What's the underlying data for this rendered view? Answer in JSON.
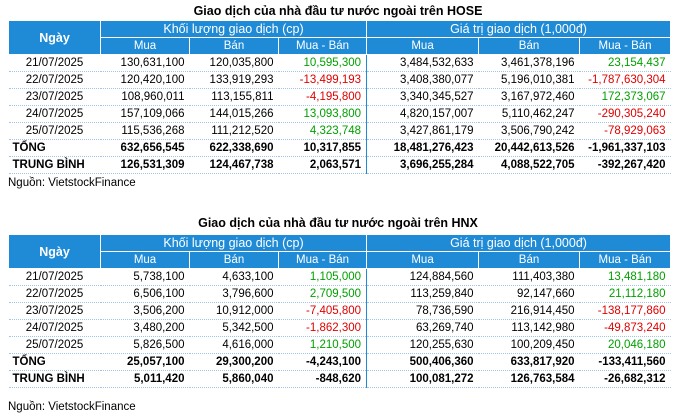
{
  "sections": [
    {
      "title": "Giao dịch của nhà đầu tư nước ngoài trên HOSE",
      "headers": {
        "date": "Ngày",
        "volume_group": "Khối lượng giao dịch (cp)",
        "value_group": "Giá trị giao dịch (1,000đ)",
        "buy": "Mua",
        "sell": "Bán",
        "net": "Mua - Bán"
      },
      "rows": [
        {
          "date": "21/07/2025",
          "vol_buy": "130,631,100",
          "vol_sell": "120,035,800",
          "vol_net": "10,595,300",
          "vol_net_sign": "pos",
          "val_buy": "3,484,532,633",
          "val_sell": "3,461,378,196",
          "val_net": "23,154,437",
          "val_net_sign": "pos"
        },
        {
          "date": "22/07/2025",
          "vol_buy": "120,420,100",
          "vol_sell": "133,919,293",
          "vol_net": "-13,499,193",
          "vol_net_sign": "neg",
          "val_buy": "3,408,380,077",
          "val_sell": "5,196,010,381",
          "val_net": "-1,787,630,304",
          "val_net_sign": "neg"
        },
        {
          "date": "23/07/2025",
          "vol_buy": "108,960,011",
          "vol_sell": "113,155,811",
          "vol_net": "-4,195,800",
          "vol_net_sign": "neg",
          "val_buy": "3,340,345,527",
          "val_sell": "3,167,972,460",
          "val_net": "172,373,067",
          "val_net_sign": "pos"
        },
        {
          "date": "24/07/2025",
          "vol_buy": "157,109,066",
          "vol_sell": "144,015,266",
          "vol_net": "13,093,800",
          "vol_net_sign": "pos",
          "val_buy": "4,820,157,007",
          "val_sell": "5,110,462,247",
          "val_net": "-290,305,240",
          "val_net_sign": "neg"
        },
        {
          "date": "25/07/2025",
          "vol_buy": "115,536,268",
          "vol_sell": "111,212,520",
          "vol_net": "4,323,748",
          "vol_net_sign": "pos",
          "val_buy": "3,427,861,179",
          "val_sell": "3,506,790,242",
          "val_net": "-78,929,063",
          "val_net_sign": "neg"
        }
      ],
      "total": {
        "label": "TỔNG",
        "vol_buy": "632,656,545",
        "vol_sell": "622,338,690",
        "vol_net": "10,317,855",
        "val_buy": "18,481,276,423",
        "val_sell": "20,442,613,526",
        "val_net": "-1,961,337,103"
      },
      "average": {
        "label": "TRUNG BÌNH",
        "vol_buy": "126,531,309",
        "vol_sell": "124,467,738",
        "vol_net": "2,063,571",
        "val_buy": "3,696,255,284",
        "val_sell": "4,088,522,705",
        "val_net": "-392,267,420"
      },
      "source": "Nguồn: VietstockFinance"
    },
    {
      "title": "Giao dịch của nhà đầu tư nước ngoài trên HNX",
      "headers": {
        "date": "Ngày",
        "volume_group": "Khối lượng giao dịch (cp)",
        "value_group": "Giá trị giao dịch (1,000đ)",
        "buy": "Mua",
        "sell": "Bán",
        "net": "Mua - Bán"
      },
      "rows": [
        {
          "date": "21/07/2025",
          "vol_buy": "5,738,100",
          "vol_sell": "4,633,100",
          "vol_net": "1,105,000",
          "vol_net_sign": "pos",
          "val_buy": "124,884,560",
          "val_sell": "111,403,380",
          "val_net": "13,481,180",
          "val_net_sign": "pos"
        },
        {
          "date": "22/07/2025",
          "vol_buy": "6,506,100",
          "vol_sell": "3,796,600",
          "vol_net": "2,709,500",
          "vol_net_sign": "pos",
          "val_buy": "113,259,840",
          "val_sell": "92,147,660",
          "val_net": "21,112,180",
          "val_net_sign": "pos"
        },
        {
          "date": "23/07/2025",
          "vol_buy": "3,506,200",
          "vol_sell": "10,912,000",
          "vol_net": "-7,405,800",
          "vol_net_sign": "neg",
          "val_buy": "78,736,590",
          "val_sell": "216,914,450",
          "val_net": "-138,177,860",
          "val_net_sign": "neg"
        },
        {
          "date": "24/07/2025",
          "vol_buy": "3,480,200",
          "vol_sell": "5,342,500",
          "vol_net": "-1,862,300",
          "vol_net_sign": "neg",
          "val_buy": "63,269,740",
          "val_sell": "113,142,980",
          "val_net": "-49,873,240",
          "val_net_sign": "neg"
        },
        {
          "date": "25/07/2025",
          "vol_buy": "5,826,500",
          "vol_sell": "4,616,000",
          "vol_net": "1,210,500",
          "vol_net_sign": "pos",
          "val_buy": "120,255,630",
          "val_sell": "100,209,450",
          "val_net": "20,046,180",
          "val_net_sign": "pos"
        }
      ],
      "total": {
        "label": "TỔNG",
        "vol_buy": "25,057,100",
        "vol_sell": "29,300,200",
        "vol_net": "-4,243,100",
        "val_buy": "500,406,360",
        "val_sell": "633,817,920",
        "val_net": "-133,411,560"
      },
      "average": {
        "label": "TRUNG BÌNH",
        "vol_buy": "5,011,420",
        "vol_sell": "5,860,040",
        "vol_net": "-848,620",
        "val_buy": "100,081,272",
        "val_sell": "126,763,584",
        "val_net": "-26,682,312"
      },
      "source": "Nguồn: VietstockFinance"
    }
  ],
  "colors": {
    "header_bg": "#1f8ad6",
    "positive": "#00a000",
    "negative": "#e00000"
  }
}
